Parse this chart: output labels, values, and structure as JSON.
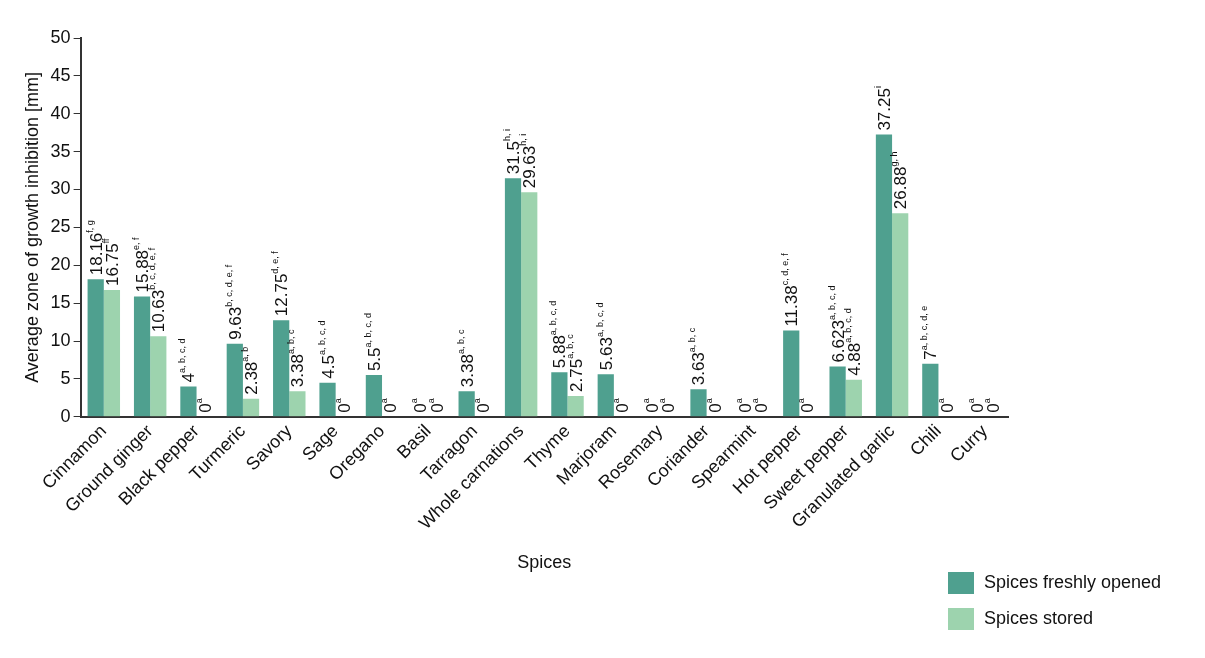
{
  "chart_data": {
    "type": "bar",
    "xlabel": "Spices",
    "ylabel": "Average zone of growth inhibition [mm]",
    "categories": [
      "Cinnamon",
      "Ground ginger",
      "Black pepper",
      "Turmeric",
      "Savory",
      "Sage",
      "Oregano",
      "Basil",
      "Tarragon",
      "Whole carnations",
      "Thyme",
      "Marjoram",
      "Rosemary",
      "Coriander",
      "Spearmint",
      "Hot pepper",
      "Sweet pepper",
      "Granulated garlic",
      "Chili",
      "Curry"
    ],
    "series": [
      {
        "name": "Spices freshly opened",
        "color": "#4fa08f",
        "values": [
          18.16,
          15.88,
          4,
          9.63,
          12.75,
          4.5,
          5.5,
          0,
          3.38,
          31.5,
          5.88,
          5.63,
          0,
          3.63,
          0,
          11.38,
          6.623,
          37.25,
          7,
          0
        ],
        "value_labels": [
          "18.16$^{f, g}$",
          "15.88$^{e, f}$",
          "4$^{a, b, c, d}$",
          "9.63$^{b, c, d, e, f}$",
          "12.75$^{d, e, f}$",
          "4.5$^{a, b, c, d}$",
          "5.5$^{a, b, c, d}$",
          "0$^{a}$",
          "3.38$^{a, b, c}$",
          "31.5$^{h, i}$",
          "5.88$^{a, b, c, d}$",
          "5.63$^{a, b, c, d}$",
          "0$^{a}$",
          "3.63$^{a, b, c}$",
          "0$^{a}$",
          "11.38$^{c, d, e, f}$",
          "6.623$^{a, b, c, d}$",
          "37.25$^{i}$",
          "7$^{a, b, c, d, e}$",
          "0$^{a}$"
        ]
      },
      {
        "name": "Spices stored",
        "color": "#9dd3ae",
        "values": [
          16.75,
          10.63,
          0,
          2.38,
          3.38,
          0,
          0,
          0,
          0,
          29.63,
          2.75,
          0,
          0,
          0,
          0,
          0,
          4.88,
          26.88,
          0,
          0
        ],
        "value_labels": [
          "16.75$^{ff}$",
          "10.63$^{b, c, d, e, f}$",
          "0$^{a}$",
          "2.38$^{a, b}$",
          "3.38$^{a, b, c}$",
          "0$^{a}$",
          "0$^{a}$",
          "0$^{a}$",
          "0$^{a}$",
          "29.63$^{h, i}$",
          "2.75$^{a, b, c}$",
          "0$^{a}$",
          "0$^{a}$",
          "0$^{a}$",
          "0$^{a}$",
          "0$^{a}$",
          "4.88$^{a, b, c, d}$",
          "26.88$^{g, h}$",
          "0$^{a}$",
          "0$^{a}$"
        ]
      }
    ],
    "ylim": [
      0,
      50
    ],
    "yticks": [
      0,
      5,
      10,
      15,
      20,
      25,
      30,
      35,
      40,
      45,
      50
    ],
    "grid": false,
    "legend": "bottom right"
  }
}
